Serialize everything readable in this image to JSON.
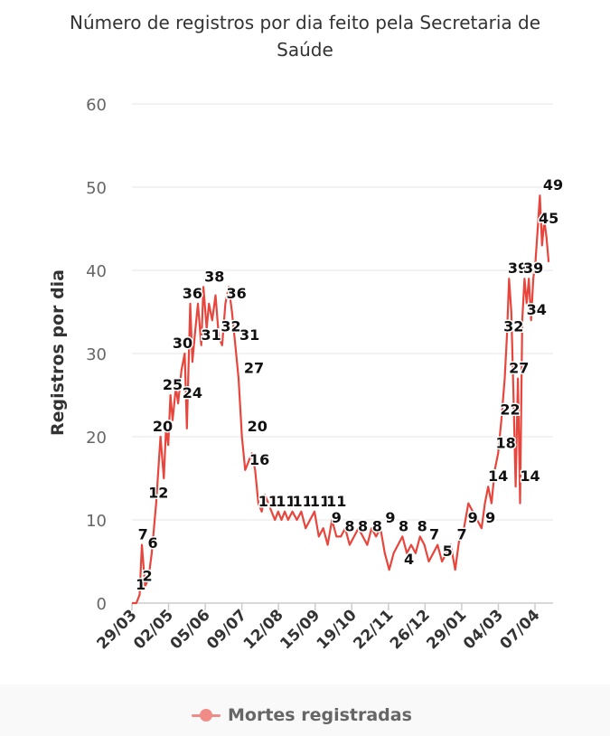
{
  "chart_data": {
    "type": "line",
    "title": "Número de registros por dia feito pela Secretaria de Saúde",
    "title_lines": [
      "Número de registros por dia feito pela Secretaria de",
      "Saúde"
    ],
    "ylabel": "Registros por dia",
    "xlabel": "",
    "ylim": [
      0,
      60
    ],
    "yticks": [
      "0",
      "10",
      "20",
      "30",
      "40",
      "50",
      "60"
    ],
    "x_tick_labels": [
      "29/03",
      "02/05",
      "05/06",
      "09/07",
      "12/08",
      "15/09",
      "19/10",
      "22/11",
      "26/12",
      "29/01",
      "04/03",
      "07/04"
    ],
    "grid": true,
    "legend_position": "bottom",
    "line_color": "#e8453c",
    "legend_color": "#f08c87",
    "series": [
      {
        "name": "Mortes registradas",
        "x": [
          0,
          4,
          7,
          9,
          12,
          15,
          18,
          22,
          26,
          29,
          31,
          33,
          35,
          37,
          40,
          42,
          45,
          48,
          50,
          53,
          55,
          57,
          60,
          63,
          65,
          68,
          70,
          73,
          76,
          79,
          82,
          85,
          88,
          91,
          94,
          97,
          100,
          103,
          106,
          109,
          112,
          115,
          118,
          121,
          124,
          127,
          130,
          133,
          136,
          139,
          142,
          146,
          150,
          154,
          158,
          162,
          166,
          170,
          174,
          178,
          182,
          186,
          190,
          194,
          198,
          202,
          206,
          210,
          214,
          218,
          222,
          226,
          230,
          234,
          238,
          242,
          246,
          250,
          254,
          258,
          262,
          266,
          270,
          274,
          278,
          282,
          286,
          290,
          294,
          298,
          302,
          306,
          310,
          314,
          318,
          321,
          324,
          327,
          330,
          333,
          336,
          339,
          341,
          343,
          345,
          347,
          349,
          351,
          353,
          355,
          357,
          359,
          361,
          363,
          365,
          367,
          369,
          371,
          373,
          375,
          377,
          379
        ],
        "values": [
          0,
          0,
          1,
          7,
          2,
          3,
          6,
          12,
          20,
          15,
          21,
          19,
          25,
          22,
          26,
          24,
          28,
          30,
          21,
          36,
          29,
          32,
          36,
          31,
          38,
          33,
          36,
          34,
          37,
          32,
          31,
          36,
          38,
          35,
          31,
          27,
          20,
          16,
          17,
          18,
          16,
          12,
          11,
          13,
          12,
          11,
          10,
          11,
          10,
          11,
          10,
          11,
          10,
          11,
          9,
          10,
          11,
          8,
          9,
          7,
          10,
          8,
          8,
          9,
          7,
          8,
          9,
          8,
          7,
          9,
          8,
          9,
          6,
          4,
          6,
          7,
          8,
          6,
          7,
          6,
          8,
          7,
          5,
          6,
          7,
          5,
          6,
          7,
          4,
          8,
          9,
          12,
          11,
          10,
          9,
          12,
          14,
          12,
          16,
          18,
          22,
          27,
          32,
          39,
          35,
          25,
          14,
          27,
          12,
          34,
          39,
          36,
          39,
          34,
          39,
          41,
          45,
          49,
          43,
          46,
          44,
          41
        ],
        "data_labels": [
          {
            "x": 8,
            "y": 1,
            "text": "1"
          },
          {
            "x": 10,
            "y": 7,
            "text": "7"
          },
          {
            "x": 14,
            "y": 2,
            "text": "2"
          },
          {
            "x": 19,
            "y": 6,
            "text": "6"
          },
          {
            "x": 24,
            "y": 12,
            "text": "12"
          },
          {
            "x": 28,
            "y": 20,
            "text": "20"
          },
          {
            "x": 37,
            "y": 25,
            "text": "25"
          },
          {
            "x": 46,
            "y": 30,
            "text": "30"
          },
          {
            "x": 55,
            "y": 24,
            "text": "24"
          },
          {
            "x": 55,
            "y": 36,
            "text": "36"
          },
          {
            "x": 72,
            "y": 31,
            "text": "31"
          },
          {
            "x": 75,
            "y": 38,
            "text": "38"
          },
          {
            "x": 90,
            "y": 32,
            "text": "32"
          },
          {
            "x": 95,
            "y": 36,
            "text": "36"
          },
          {
            "x": 107,
            "y": 31,
            "text": "31"
          },
          {
            "x": 111,
            "y": 27,
            "text": "27"
          },
          {
            "x": 114,
            "y": 20,
            "text": "20"
          },
          {
            "x": 116,
            "y": 16,
            "text": "16"
          },
          {
            "x": 124,
            "y": 11,
            "text": "11"
          },
          {
            "x": 140,
            "y": 11,
            "text": "11"
          },
          {
            "x": 155,
            "y": 11,
            "text": "11"
          },
          {
            "x": 171,
            "y": 11,
            "text": "11"
          },
          {
            "x": 186,
            "y": 11,
            "text": "11"
          },
          {
            "x": 186,
            "y": 9,
            "text": "9"
          },
          {
            "x": 198,
            "y": 8,
            "text": "8"
          },
          {
            "x": 210,
            "y": 8,
            "text": "8"
          },
          {
            "x": 223,
            "y": 8,
            "text": "8"
          },
          {
            "x": 235,
            "y": 9,
            "text": "9"
          },
          {
            "x": 247,
            "y": 8,
            "text": "8"
          },
          {
            "x": 252,
            "y": 4,
            "text": "4"
          },
          {
            "x": 264,
            "y": 8,
            "text": "8"
          },
          {
            "x": 275,
            "y": 7,
            "text": "7"
          },
          {
            "x": 287,
            "y": 5,
            "text": "5"
          },
          {
            "x": 300,
            "y": 7,
            "text": "7"
          },
          {
            "x": 310,
            "y": 9,
            "text": "9"
          },
          {
            "x": 326,
            "y": 9,
            "text": "9"
          },
          {
            "x": 333,
            "y": 14,
            "text": "14"
          },
          {
            "x": 340,
            "y": 18,
            "text": "18"
          },
          {
            "x": 344,
            "y": 22,
            "text": "22"
          },
          {
            "x": 347,
            "y": 32,
            "text": "32"
          },
          {
            "x": 352,
            "y": 27,
            "text": "27"
          },
          {
            "x": 351,
            "y": 39,
            "text": "39"
          },
          {
            "x": 362,
            "y": 14,
            "text": "14"
          },
          {
            "x": 365,
            "y": 39,
            "text": "39"
          },
          {
            "x": 368,
            "y": 34,
            "text": "34"
          },
          {
            "x": 379,
            "y": 45,
            "text": "45"
          },
          {
            "x": 383,
            "y": 49,
            "text": "49"
          }
        ]
      }
    ]
  }
}
